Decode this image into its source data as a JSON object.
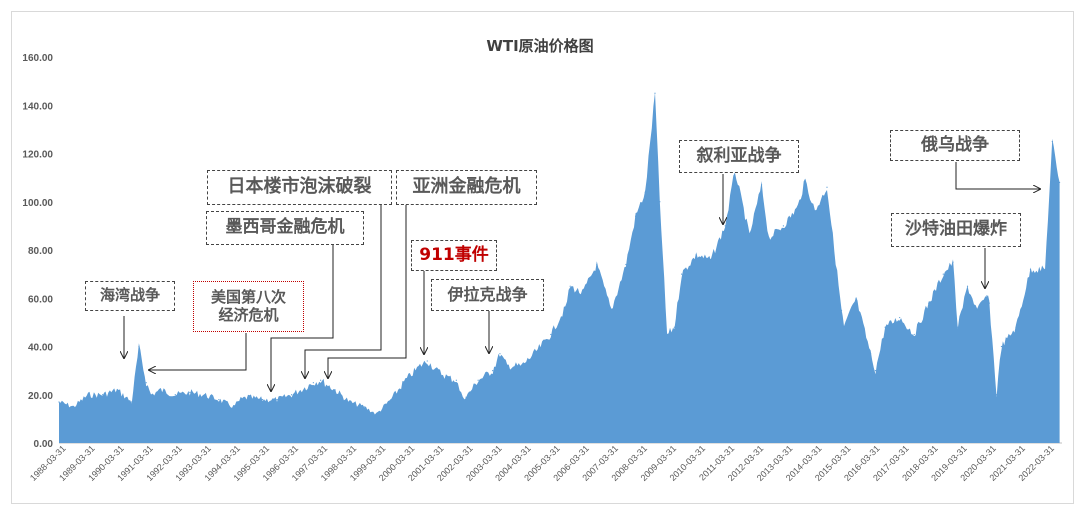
{
  "chart_data": {
    "type": "area",
    "title": "WTI原油价格图",
    "xlabel": "",
    "ylabel": "",
    "ylim": [
      0,
      160
    ],
    "y_ticks": [
      "0.00",
      "20.00",
      "40.00",
      "60.00",
      "80.00",
      "100.00",
      "120.00",
      "140.00",
      "160.00"
    ],
    "x_ticks": [
      "1988-03-31",
      "1989-03-31",
      "1990-03-31",
      "1991-03-31",
      "1992-03-31",
      "1993-03-31",
      "1994-03-31",
      "1995-03-31",
      "1996-03-31",
      "1997-03-31",
      "1998-03-31",
      "1999-03-31",
      "2000-03-31",
      "2001-03-31",
      "2002-03-31",
      "2003-03-31",
      "2004-03-31",
      "2005-03-31",
      "2006-03-31",
      "2007-03-31",
      "2008-03-31",
      "2009-03-31",
      "2010-03-31",
      "2011-03-31",
      "2012-03-31",
      "2013-03-31",
      "2014-03-31",
      "2015-03-31",
      "2016-03-31",
      "2017-03-31",
      "2018-03-31",
      "2019-03-31",
      "2020-03-31",
      "2021-03-31",
      "2022-03-31"
    ],
    "grid": false,
    "legend": "none",
    "color": "#5b9bd5",
    "series": [
      {
        "x": [
          "1988-01",
          "1988-07",
          "1989-01",
          "1989-07",
          "1990-01",
          "1990-07",
          "1990-10",
          "1991-01",
          "1991-03",
          "1991-07",
          "1992-01",
          "1992-07",
          "1993-01",
          "1993-07",
          "1994-01",
          "1994-04",
          "1994-07",
          "1995-01",
          "1995-07",
          "1996-01",
          "1996-10",
          "1997-01",
          "1997-07",
          "1998-01",
          "1998-07",
          "1998-12",
          "1999-06",
          "1999-12",
          "2000-06",
          "2000-09",
          "2001-01",
          "2001-06",
          "2001-09",
          "2001-11",
          "2002-01",
          "2002-06",
          "2002-12",
          "2003-03",
          "2003-06",
          "2003-12",
          "2004-06",
          "2004-12",
          "2005-06",
          "2005-08",
          "2006-01",
          "2006-07",
          "2007-01",
          "2007-07",
          "2007-11",
          "2008-03",
          "2008-07",
          "2008-09",
          "2008-12",
          "2009-03",
          "2009-06",
          "2009-12",
          "2010-06",
          "2010-12",
          "2011-04",
          "2011-10",
          "2012-03",
          "2012-06",
          "2012-12",
          "2013-06",
          "2013-09",
          "2014-01",
          "2014-06",
          "2014-12",
          "2015-01",
          "2015-06",
          "2015-12",
          "2016-02",
          "2016-06",
          "2016-12",
          "2017-06",
          "2017-12",
          "2018-06",
          "2018-10",
          "2018-12",
          "2019-04",
          "2019-08",
          "2019-12",
          "2020-01",
          "2020-04",
          "2020-06",
          "2020-12",
          "2021-06",
          "2021-12",
          "2022-03",
          "2022-06"
        ],
        "y": [
          17,
          15,
          20,
          20,
          22,
          17,
          40,
          25,
          20,
          22,
          20,
          21,
          20,
          18,
          15,
          18,
          19,
          18,
          18,
          20,
          25,
          26,
          22,
          17,
          15,
          12,
          18,
          26,
          32,
          34,
          30,
          27,
          26,
          20,
          19,
          26,
          30,
          37,
          32,
          32,
          38,
          45,
          56,
          65,
          62,
          74,
          55,
          74,
          94,
          104,
          145,
          100,
          45,
          48,
          70,
          78,
          76,
          90,
          113,
          86,
          107,
          85,
          90,
          98,
          109,
          96,
          106,
          55,
          48,
          60,
          37,
          30,
          48,
          52,
          45,
          58,
          70,
          75,
          48,
          65,
          55,
          61,
          58,
          20,
          40,
          48,
          72,
          72,
          125,
          108
        ]
      }
    ]
  },
  "annotations": {
    "gulf_war": "海湾战争",
    "us_crisis_1": "美国第八次",
    "us_crisis_2": "经济危机",
    "mexico_crisis": "墨西哥金融危机",
    "japan_bubble": "日本楼市泡沫破裂",
    "asia_crisis": "亚洲金融危机",
    "event_911": "911事件",
    "iraq_war": "伊拉克战争",
    "syria_war": "叙利亚战争",
    "russia_ukraine": "俄乌战争",
    "saudi_explosion": "沙特油田爆炸"
  }
}
